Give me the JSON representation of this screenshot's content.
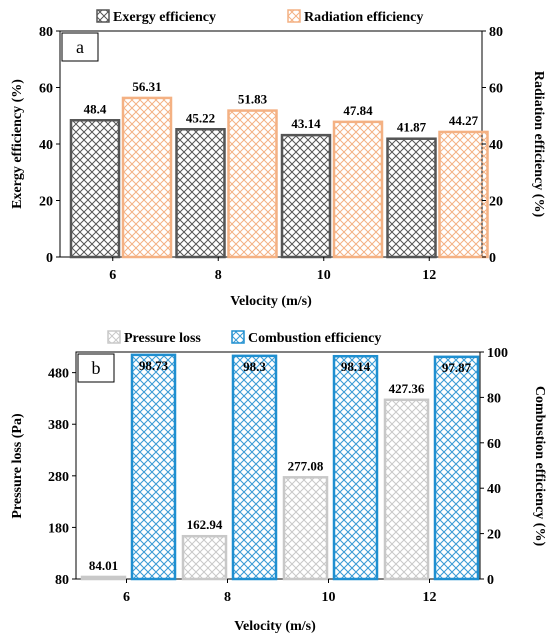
{
  "chart_data": [
    {
      "panel": "a",
      "type": "bar",
      "categories": [
        "6",
        "8",
        "10",
        "12"
      ],
      "xlabel": "Velocity (m/s)",
      "series": [
        {
          "name": "Exergy efficiency",
          "axis": "left",
          "values": [
            48.4,
            45.22,
            43.14,
            41.87
          ],
          "labels": [
            "48.4",
            "45.22",
            "43.14",
            "41.87"
          ],
          "fill": "#ffffff",
          "hatch": "#555555",
          "stroke": "#555555"
        },
        {
          "name": "Radiation efficiency",
          "axis": "right",
          "values": [
            56.31,
            51.83,
            47.84,
            44.27
          ],
          "labels": [
            "56.31",
            "51.83",
            "47.84",
            "44.27"
          ],
          "fill": "#ffffff",
          "hatch": "#f4b183",
          "stroke": "#f4b183"
        }
      ],
      "y_left": {
        "label": "Exergy efficiency (%)",
        "lim": [
          0,
          80
        ],
        "ticks": [
          "0",
          "20",
          "40",
          "60",
          "80"
        ]
      },
      "y_right": {
        "label": "Radiation efficiency (%)",
        "lim": [
          0,
          80
        ],
        "ticks": [
          "0",
          "20",
          "40",
          "60",
          "80"
        ]
      },
      "legend": "top"
    },
    {
      "panel": "b",
      "type": "bar",
      "categories": [
        "6",
        "8",
        "10",
        "12"
      ],
      "xlabel": "Velocity (m/s)",
      "series": [
        {
          "name": "Pressure loss",
          "axis": "left",
          "values": [
            84.01,
            162.94,
            277.08,
            427.36
          ],
          "labels": [
            "84.01",
            "162.94",
            "277.08",
            "427.36"
          ],
          "fill": "#ffffff",
          "hatch": "#c8c8c8",
          "stroke": "#c8c8c8"
        },
        {
          "name": "Combustion efficiency",
          "axis": "right",
          "values": [
            98.73,
            98.3,
            98.14,
            97.87
          ],
          "labels": [
            "98.73",
            "98.3",
            "98.14",
            "97.87"
          ],
          "fill": "#ffffff",
          "hatch": "#3a9bd5",
          "stroke": "#1f8fd0"
        }
      ],
      "y_left": {
        "label": "Pressure loss (Pa)",
        "lim": [
          80,
          520
        ],
        "ticks": [
          "80",
          "180",
          "280",
          "380",
          "480"
        ]
      },
      "y_right": {
        "label": "Combustion efficiency (%)",
        "lim": [
          0,
          100
        ],
        "ticks": [
          "0",
          "20",
          "40",
          "60",
          "80",
          "100"
        ]
      },
      "legend": "top"
    }
  ]
}
